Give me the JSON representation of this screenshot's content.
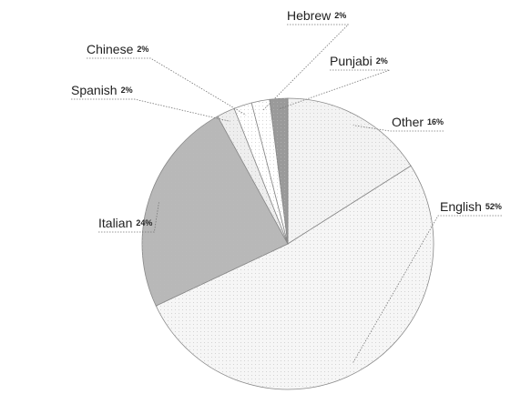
{
  "chart_data": {
    "type": "pie",
    "categories": [
      "Other",
      "English",
      "Italian",
      "Spanish",
      "Chinese",
      "Hebrew",
      "Punjabi"
    ],
    "values": [
      16,
      52,
      24,
      2,
      2,
      2,
      2
    ],
    "value_labels": [
      "16%",
      "52%",
      "24%",
      "2%",
      "2%",
      "2%",
      "2%"
    ],
    "colors": [
      "#f3f3f3",
      "#f6f6f6",
      "#b8b8b8",
      "#eeeeee",
      "#ffffff",
      "#ffffff",
      "#9a9a9a"
    ]
  }
}
